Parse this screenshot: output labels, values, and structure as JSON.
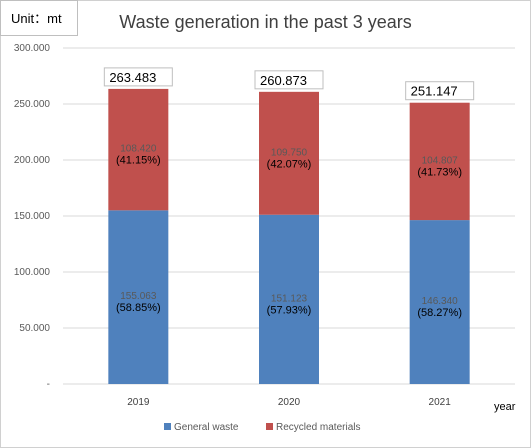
{
  "unit_label": "Unit：mt",
  "chart_data": {
    "type": "bar",
    "stacked": true,
    "title": "Waste generation in the past 3 years",
    "xlabel": "year",
    "ylabel": "",
    "categories": [
      "2019",
      "2020",
      "2021"
    ],
    "ylim": [
      0,
      300
    ],
    "y_ticks": [
      "-",
      "50.000",
      "100.000",
      "150.000",
      "200.000",
      "250.000",
      "300.000"
    ],
    "y_tick_values": [
      0,
      50,
      100,
      150,
      200,
      250,
      300
    ],
    "grid": true,
    "legend_position": "bottom",
    "series": [
      {
        "name": "General waste",
        "color": "#4f81bd",
        "values": [
          155.063,
          151.123,
          146.34
        ],
        "value_labels": [
          "155.063",
          "151.123",
          "146.340"
        ],
        "pct_labels": [
          "(58.85%)",
          "(57.93%)",
          "(58.27%)"
        ]
      },
      {
        "name": "Recycled materials",
        "color": "#c0504d",
        "values": [
          108.42,
          109.75,
          104.807
        ],
        "value_labels": [
          "108.420",
          "109.750",
          "104.807"
        ],
        "pct_labels": [
          "(41.15%)",
          "(42.07%)",
          "(41.73%)"
        ]
      }
    ],
    "totals": [
      "263.483",
      "260.873",
      "251.147"
    ]
  }
}
